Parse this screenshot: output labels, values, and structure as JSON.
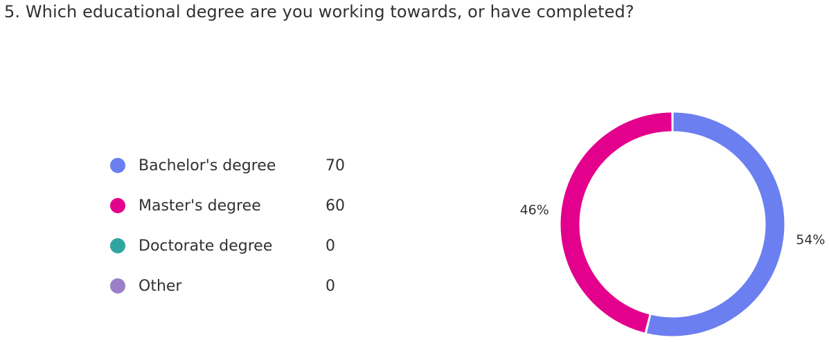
{
  "question": {
    "title": "5. Which educational degree are you working towards, or have completed?"
  },
  "chart_data": {
    "type": "pie",
    "donut": true,
    "categories": [
      "Bachelor's degree",
      "Master's degree",
      "Doctorate degree",
      "Other"
    ],
    "values": [
      70,
      60,
      0,
      0
    ],
    "colors": [
      "#6b7ff0",
      "#e3008c",
      "#2fa5a0",
      "#9a7fc8"
    ],
    "slice_labels": [
      "54%",
      "46%",
      "",
      ""
    ],
    "legend_position": "left"
  },
  "legend": {
    "items": [
      {
        "label": "Bachelor's degree",
        "count": "70",
        "color": "#6b7ff0"
      },
      {
        "label": "Master's degree",
        "count": "60",
        "color": "#e3008c"
      },
      {
        "label": "Doctorate degree",
        "count": "0",
        "color": "#2fa5a0"
      },
      {
        "label": "Other",
        "count": "0",
        "color": "#9a7fc8"
      }
    ]
  }
}
